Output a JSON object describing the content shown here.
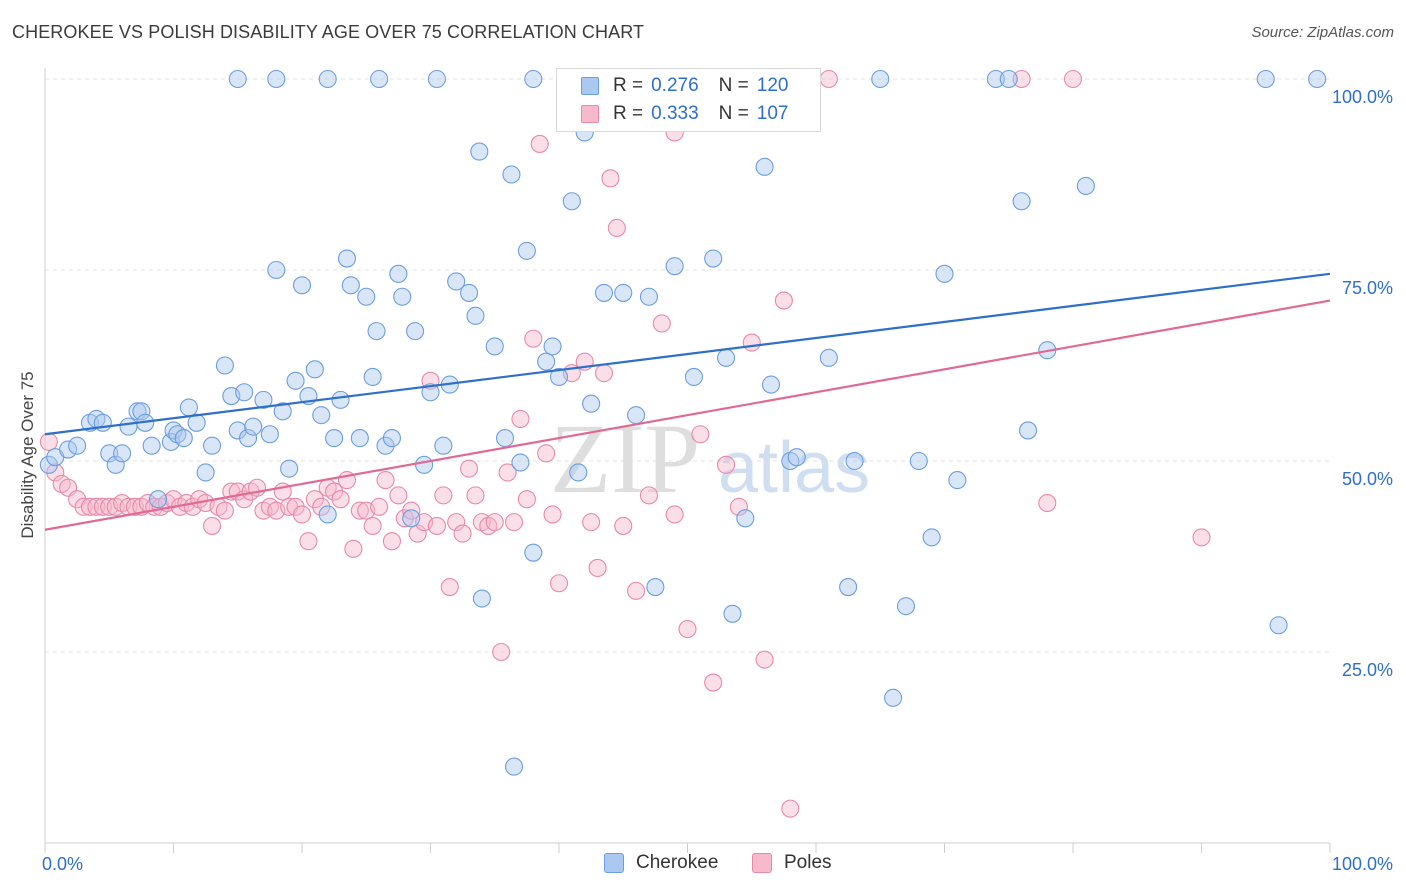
{
  "title": "CHEROKEE VS POLISH DISABILITY AGE OVER 75 CORRELATION CHART",
  "source": "Source: ZipAtlas.com",
  "watermark": {
    "zip": "ZIP",
    "atlas": "atlas"
  },
  "colors": {
    "cherokee_fill": "#aac8f0",
    "cherokee_stroke": "#6b9ee0",
    "cherokee_line": "#2e6fcb",
    "poles_fill": "#f7b9cc",
    "poles_stroke": "#e889a8",
    "poles_line": "#e06a96",
    "value_text": "#2e6fcb"
  },
  "legend_top": {
    "cherokee": {
      "r_label": "R =",
      "r_value": "0.276",
      "n_label": "N =",
      "n_value": "120"
    },
    "poles": {
      "r_label": "R =",
      "r_value": "0.333",
      "n_label": "N =",
      "n_value": "107"
    }
  },
  "chart_data": {
    "type": "scatter",
    "title": "CHEROKEE VS POLISH DISABILITY AGE OVER 75 CORRELATION CHART",
    "xlabel": "",
    "ylabel": "Disability Age Over 75",
    "xlim": [
      0,
      100
    ],
    "ylim": [
      0,
      100
    ],
    "x_tick_labels": [
      "0.0%",
      "100.0%"
    ],
    "y_tick_labels": [
      {
        "value": 25,
        "label": "25.0%"
      },
      {
        "value": 50,
        "label": "50.0%"
      },
      {
        "value": 75,
        "label": "75.0%"
      },
      {
        "value": 100,
        "label": "100.0%"
      }
    ],
    "grid": true,
    "legend_position": "bottom-center",
    "series": [
      {
        "name": "Cherokee",
        "trend": {
          "x": [
            0,
            100
          ],
          "y": [
            53.5,
            74.5
          ]
        },
        "points": [
          [
            0.3,
            49.5
          ],
          [
            0.8,
            50.5
          ],
          [
            1.8,
            51.5
          ],
          [
            2.5,
            52
          ],
          [
            3.5,
            55
          ],
          [
            4,
            55.5
          ],
          [
            4.5,
            55
          ],
          [
            5,
            51
          ],
          [
            5.5,
            49.5
          ],
          [
            6,
            51
          ],
          [
            6.5,
            54.5
          ],
          [
            7.2,
            56.5
          ],
          [
            7.5,
            56.5
          ],
          [
            7.8,
            55
          ],
          [
            8.3,
            52
          ],
          [
            8.8,
            45
          ],
          [
            9.8,
            52.5
          ],
          [
            10,
            54
          ],
          [
            10.3,
            53.5
          ],
          [
            10.8,
            53
          ],
          [
            11.2,
            57
          ],
          [
            11.8,
            55
          ],
          [
            12.5,
            48.5
          ],
          [
            13,
            52
          ],
          [
            14,
            62.5
          ],
          [
            14.5,
            58.5
          ],
          [
            15,
            54
          ],
          [
            15.5,
            59
          ],
          [
            15.8,
            53
          ],
          [
            16.2,
            54.5
          ],
          [
            17,
            58
          ],
          [
            17.5,
            53.5
          ],
          [
            18,
            75
          ],
          [
            18.5,
            56.5
          ],
          [
            19,
            49
          ],
          [
            19.5,
            60.5
          ],
          [
            20,
            73
          ],
          [
            20.5,
            58.5
          ],
          [
            21,
            62
          ],
          [
            21.5,
            56
          ],
          [
            22,
            43
          ],
          [
            22.5,
            53
          ],
          [
            23,
            58
          ],
          [
            23.5,
            76.5
          ],
          [
            23.8,
            73
          ],
          [
            24.5,
            53
          ],
          [
            25,
            71.5
          ],
          [
            25.5,
            61
          ],
          [
            25.8,
            67
          ],
          [
            26.5,
            52
          ],
          [
            27,
            53
          ],
          [
            27.5,
            74.5
          ],
          [
            27.8,
            71.5
          ],
          [
            28.5,
            42.5
          ],
          [
            28.8,
            67
          ],
          [
            29.5,
            49.5
          ],
          [
            30,
            59
          ],
          [
            31,
            52
          ],
          [
            31.5,
            60
          ],
          [
            32,
            73.5
          ],
          [
            33,
            72
          ],
          [
            33.5,
            69
          ],
          [
            33.8,
            90.5
          ],
          [
            34,
            32
          ],
          [
            35,
            65
          ],
          [
            35.8,
            53
          ],
          [
            36.3,
            87.5
          ],
          [
            36.5,
            10
          ],
          [
            37,
            49.8
          ],
          [
            37.5,
            77.5
          ],
          [
            38,
            38
          ],
          [
            39,
            63
          ],
          [
            39.5,
            65
          ],
          [
            40,
            61
          ],
          [
            41,
            84
          ],
          [
            41.5,
            48.5
          ],
          [
            42,
            93
          ],
          [
            42.5,
            57.5
          ],
          [
            43.5,
            72
          ],
          [
            45,
            72
          ],
          [
            46,
            56
          ],
          [
            47,
            71.5
          ],
          [
            47.5,
            33.5
          ],
          [
            49,
            75.5
          ],
          [
            50.5,
            61
          ],
          [
            52,
            76.5
          ],
          [
            53,
            63.5
          ],
          [
            53.5,
            30
          ],
          [
            54.5,
            42.5
          ],
          [
            56,
            88.5
          ],
          [
            56.5,
            60
          ],
          [
            58,
            50
          ],
          [
            58.5,
            50.5
          ],
          [
            59,
            100
          ],
          [
            61,
            63.5
          ],
          [
            62.5,
            33.5
          ],
          [
            63,
            50
          ],
          [
            65,
            100
          ],
          [
            66,
            19
          ],
          [
            67,
            31
          ],
          [
            68,
            50
          ],
          [
            69,
            40
          ],
          [
            70,
            74.5
          ],
          [
            71,
            47.5
          ],
          [
            74,
            100
          ],
          [
            75,
            100
          ],
          [
            76,
            84
          ],
          [
            76.5,
            54
          ],
          [
            78,
            64.5
          ],
          [
            81,
            86
          ],
          [
            95,
            100
          ],
          [
            96,
            28.5
          ],
          [
            99,
            100
          ],
          [
            44,
            100
          ],
          [
            38,
            100
          ],
          [
            30.5,
            100
          ],
          [
            26,
            100
          ],
          [
            22,
            100
          ],
          [
            18,
            100
          ],
          [
            15,
            100
          ]
        ]
      },
      {
        "name": "Poles",
        "trend": {
          "x": [
            0,
            100
          ],
          "y": [
            41,
            71
          ]
        },
        "points": [
          [
            0.3,
            52.5
          ],
          [
            0.8,
            48.5
          ],
          [
            1.3,
            47
          ],
          [
            1.8,
            46.5
          ],
          [
            2.5,
            45
          ],
          [
            3,
            44
          ],
          [
            3.5,
            44
          ],
          [
            4,
            44
          ],
          [
            4.5,
            44
          ],
          [
            5,
            44
          ],
          [
            5.5,
            44
          ],
          [
            6,
            44.5
          ],
          [
            6.5,
            44
          ],
          [
            7,
            44
          ],
          [
            7.5,
            44
          ],
          [
            8,
            44.5
          ],
          [
            8.5,
            44
          ],
          [
            9,
            44
          ],
          [
            9.5,
            44.5
          ],
          [
            10,
            45
          ],
          [
            10.5,
            44
          ],
          [
            11,
            44.5
          ],
          [
            11.5,
            44
          ],
          [
            12,
            45
          ],
          [
            12.5,
            44.5
          ],
          [
            13,
            41.5
          ],
          [
            13.5,
            44
          ],
          [
            14,
            43.5
          ],
          [
            14.5,
            46
          ],
          [
            15,
            46
          ],
          [
            15.5,
            45
          ],
          [
            16,
            46
          ],
          [
            16.5,
            46.5
          ],
          [
            17,
            43.5
          ],
          [
            17.5,
            44
          ],
          [
            18,
            43.5
          ],
          [
            18.5,
            46
          ],
          [
            19,
            44
          ],
          [
            19.5,
            44
          ],
          [
            20,
            43
          ],
          [
            20.5,
            39.5
          ],
          [
            21,
            45
          ],
          [
            21.5,
            44
          ],
          [
            22,
            46.5
          ],
          [
            22.5,
            46
          ],
          [
            23,
            45
          ],
          [
            23.5,
            47.5
          ],
          [
            24,
            38.5
          ],
          [
            24.5,
            43.5
          ],
          [
            25,
            43.5
          ],
          [
            25.5,
            41.5
          ],
          [
            26,
            44
          ],
          [
            26.5,
            47.5
          ],
          [
            27,
            39.5
          ],
          [
            27.5,
            45.5
          ],
          [
            28,
            42.5
          ],
          [
            28.5,
            43.5
          ],
          [
            29,
            40.5
          ],
          [
            29.5,
            42
          ],
          [
            30,
            60.5
          ],
          [
            30.5,
            41.5
          ],
          [
            31,
            45.5
          ],
          [
            31.5,
            33.5
          ],
          [
            32,
            42
          ],
          [
            32.5,
            40.5
          ],
          [
            33,
            49
          ],
          [
            33.5,
            45.5
          ],
          [
            34,
            42
          ],
          [
            34.5,
            41.5
          ],
          [
            35,
            42
          ],
          [
            35.5,
            25
          ],
          [
            36,
            48.5
          ],
          [
            36.5,
            42
          ],
          [
            37,
            55.5
          ],
          [
            37.5,
            45
          ],
          [
            38,
            66
          ],
          [
            38.5,
            91.5
          ],
          [
            39,
            51
          ],
          [
            39.5,
            43
          ],
          [
            40,
            34
          ],
          [
            41,
            61.5
          ],
          [
            42,
            63
          ],
          [
            42.5,
            42
          ],
          [
            43,
            36
          ],
          [
            43.5,
            61.5
          ],
          [
            44,
            87
          ],
          [
            44.5,
            80.5
          ],
          [
            45,
            41.5
          ],
          [
            46,
            33
          ],
          [
            47,
            45.5
          ],
          [
            48,
            68
          ],
          [
            49,
            43
          ],
          [
            50,
            28
          ],
          [
            51,
            53.5
          ],
          [
            52,
            21
          ],
          [
            53,
            49.5
          ],
          [
            54,
            44
          ],
          [
            55,
            65.5
          ],
          [
            56,
            24
          ],
          [
            57.5,
            71
          ],
          [
            58,
            4.5
          ],
          [
            61,
            100
          ],
          [
            76,
            100
          ],
          [
            80,
            100
          ],
          [
            78,
            44.5
          ],
          [
            90,
            40
          ],
          [
            49,
            93
          ]
        ]
      }
    ]
  }
}
